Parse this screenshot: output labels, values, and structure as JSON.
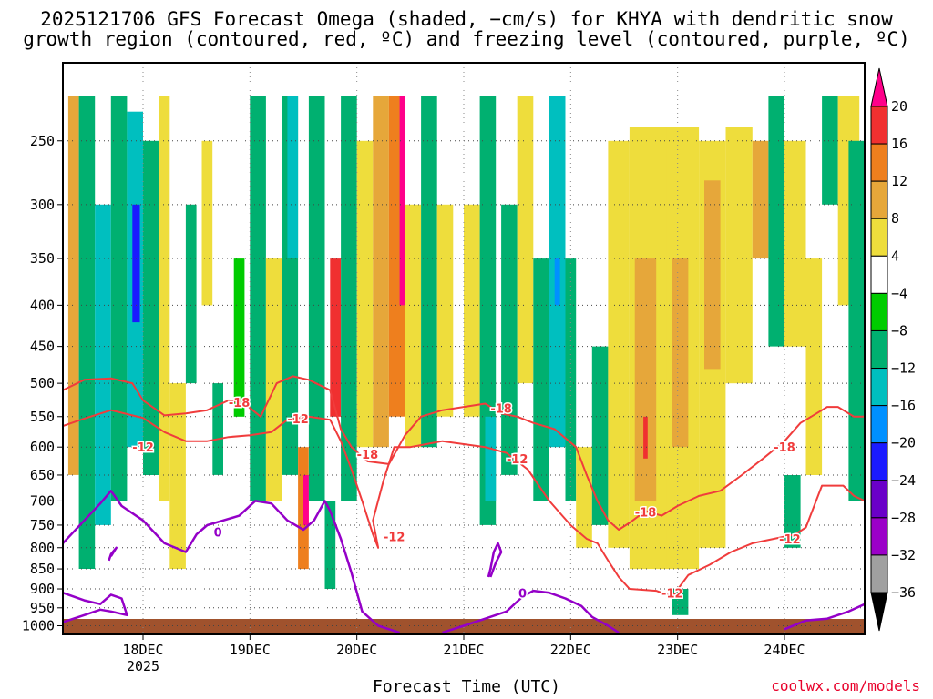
{
  "title_line1": "2025121706 GFS Forecast Omega (shaded, −cm/s) for KHYA with dendritic snow",
  "title_line2": "growth region (contoured, red, ºC) and freezing level (contoured, purple, ºC)",
  "credit": "coolwx.com/models",
  "chart_data": {
    "type": "heatmap",
    "title": "2025121706 GFS Forecast Omega (shaded, −cm/s) for KHYA with dendritic snow growth region (contoured, red, ºC) and freezing level (contoured, purple, ºC)",
    "xlabel": "Forecast Time (UTC)",
    "ylabel": "",
    "x_ticks": [
      {
        "day": 18,
        "label": "18DEC",
        "sublabel": "2025"
      },
      {
        "day": 19,
        "label": "19DEC"
      },
      {
        "day": 20,
        "label": "20DEC"
      },
      {
        "day": 21,
        "label": "21DEC"
      },
      {
        "day": 22,
        "label": "22DEC"
      },
      {
        "day": 23,
        "label": "23DEC"
      },
      {
        "day": 24,
        "label": "24DEC"
      }
    ],
    "x_range": [
      17.25,
      24.75
    ],
    "y_ticks": [
      250,
      300,
      350,
      400,
      450,
      500,
      550,
      600,
      650,
      700,
      750,
      800,
      850,
      900,
      950,
      1000
    ],
    "y_range": [
      1025,
      200
    ],
    "colorbar": {
      "labels": [
        "20",
        "16",
        "12",
        "8",
        "4",
        "−4",
        "−8",
        "−12",
        "−16",
        "−20",
        "−24",
        "−28",
        "−32",
        "−36"
      ],
      "colors": [
        "#ff008a",
        "#f03030",
        "#ee7f1e",
        "#e6a73a",
        "#eedd3c",
        "#ffffff",
        "#00cc00",
        "#00b070",
        "#00bfbf",
        "#0090ff",
        "#1a1aff",
        "#6a00c8",
        "#9b00c8",
        "#a0a0a0",
        "#000000"
      ]
    },
    "omega_cells": [
      {
        "t0": 17.3,
        "t1": 17.4,
        "p0": 220,
        "p1": 650,
        "v": 8
      },
      {
        "t0": 17.4,
        "t1": 17.55,
        "p0": 220,
        "p1": 850,
        "v": -8
      },
      {
        "t0": 17.55,
        "t1": 17.7,
        "p0": 300,
        "p1": 750,
        "v": -12
      },
      {
        "t0": 17.7,
        "t1": 17.85,
        "p0": 220,
        "p1": 700,
        "v": -8
      },
      {
        "t0": 17.85,
        "t1": 18.0,
        "p0": 230,
        "p1": 600,
        "v": -12
      },
      {
        "t0": 17.9,
        "t1": 17.97,
        "p0": 300,
        "p1": 420,
        "v": -20
      },
      {
        "t0": 18.0,
        "t1": 18.15,
        "p0": 250,
        "p1": 650,
        "v": -8
      },
      {
        "t0": 18.15,
        "t1": 18.25,
        "p0": 220,
        "p1": 700,
        "v": 4
      },
      {
        "t0": 18.25,
        "t1": 18.4,
        "p0": 500,
        "p1": 850,
        "v": 5
      },
      {
        "t0": 18.4,
        "t1": 18.5,
        "p0": 300,
        "p1": 500,
        "v": -8
      },
      {
        "t0": 18.55,
        "t1": 18.65,
        "p0": 250,
        "p1": 400,
        "v": 5
      },
      {
        "t0": 18.65,
        "t1": 18.75,
        "p0": 500,
        "p1": 650,
        "v": -8
      },
      {
        "t0": 18.85,
        "t1": 18.95,
        "p0": 350,
        "p1": 550,
        "v": -4.5
      },
      {
        "t0": 19.0,
        "t1": 19.15,
        "p0": 220,
        "p1": 700,
        "v": -8
      },
      {
        "t0": 19.15,
        "t1": 19.3,
        "p0": 350,
        "p1": 700,
        "v": 5
      },
      {
        "t0": 19.3,
        "t1": 19.45,
        "p0": 220,
        "p1": 650,
        "v": -8
      },
      {
        "t0": 19.35,
        "t1": 19.45,
        "p0": 220,
        "p1": 350,
        "v": -12
      },
      {
        "t0": 19.45,
        "t1": 19.55,
        "p0": 600,
        "p1": 850,
        "v": 12
      },
      {
        "t0": 19.5,
        "t1": 19.55,
        "p0": 650,
        "p1": 750,
        "v": 20
      },
      {
        "t0": 19.55,
        "t1": 19.7,
        "p0": 220,
        "p1": 700,
        "v": -8
      },
      {
        "t0": 19.7,
        "t1": 19.8,
        "p0": 700,
        "p1": 900,
        "v": -8
      },
      {
        "t0": 19.75,
        "t1": 19.85,
        "p0": 350,
        "p1": 550,
        "v": 16
      },
      {
        "t0": 19.85,
        "t1": 20.0,
        "p0": 220,
        "p1": 700,
        "v": -8
      },
      {
        "t0": 20.0,
        "t1": 20.15,
        "p0": 250,
        "p1": 600,
        "v": 5
      },
      {
        "t0": 20.15,
        "t1": 20.3,
        "p0": 220,
        "p1": 600,
        "v": 8
      },
      {
        "t0": 20.3,
        "t1": 20.45,
        "p0": 220,
        "p1": 550,
        "v": 12
      },
      {
        "t0": 20.4,
        "t1": 20.45,
        "p0": 220,
        "p1": 400,
        "v": 20
      },
      {
        "t0": 20.45,
        "t1": 20.6,
        "p0": 300,
        "p1": 600,
        "v": 5
      },
      {
        "t0": 20.6,
        "t1": 20.75,
        "p0": 220,
        "p1": 600,
        "v": -8
      },
      {
        "t0": 20.75,
        "t1": 20.9,
        "p0": 300,
        "p1": 550,
        "v": 5
      },
      {
        "t0": 21.0,
        "t1": 21.15,
        "p0": 300,
        "p1": 550,
        "v": 5
      },
      {
        "t0": 21.15,
        "t1": 21.3,
        "p0": 220,
        "p1": 750,
        "v": -8
      },
      {
        "t0": 21.2,
        "t1": 21.3,
        "p0": 550,
        "p1": 700,
        "v": -12
      },
      {
        "t0": 21.35,
        "t1": 21.5,
        "p0": 300,
        "p1": 650,
        "v": -8
      },
      {
        "t0": 21.5,
        "t1": 21.65,
        "p0": 220,
        "p1": 500,
        "v": 5
      },
      {
        "t0": 21.65,
        "t1": 21.8,
        "p0": 350,
        "p1": 700,
        "v": -8
      },
      {
        "t0": 21.8,
        "t1": 21.95,
        "p0": 220,
        "p1": 600,
        "v": -12
      },
      {
        "t0": 21.85,
        "t1": 21.9,
        "p0": 350,
        "p1": 400,
        "v": -16
      },
      {
        "t0": 21.95,
        "t1": 22.05,
        "p0": 350,
        "p1": 700,
        "v": -8
      },
      {
        "t0": 22.05,
        "t1": 22.2,
        "p0": 600,
        "p1": 800,
        "v": 5
      },
      {
        "t0": 22.2,
        "t1": 22.35,
        "p0": 450,
        "p1": 750,
        "v": -8
      },
      {
        "t0": 22.35,
        "t1": 22.55,
        "p0": 250,
        "p1": 800,
        "v": 5
      },
      {
        "t0": 22.55,
        "t1": 22.9,
        "p0": 240,
        "p1": 850,
        "v": 6
      },
      {
        "t0": 22.6,
        "t1": 22.8,
        "p0": 350,
        "p1": 700,
        "v": 10
      },
      {
        "t0": 22.68,
        "t1": 22.72,
        "p0": 550,
        "p1": 620,
        "v": 16
      },
      {
        "t0": 22.9,
        "t1": 23.2,
        "p0": 240,
        "p1": 850,
        "v": 6
      },
      {
        "t0": 22.95,
        "t1": 23.1,
        "p0": 350,
        "p1": 600,
        "v": 10
      },
      {
        "t0": 22.95,
        "t1": 23.1,
        "p0": 900,
        "p1": 970,
        "v": -8
      },
      {
        "t0": 23.2,
        "t1": 23.45,
        "p0": 250,
        "p1": 800,
        "v": 6
      },
      {
        "t0": 23.25,
        "t1": 23.4,
        "p0": 280,
        "p1": 480,
        "v": 10
      },
      {
        "t0": 23.45,
        "t1": 23.7,
        "p0": 240,
        "p1": 500,
        "v": 5
      },
      {
        "t0": 23.7,
        "t1": 23.85,
        "p0": 250,
        "p1": 350,
        "v": 10
      },
      {
        "t0": 23.85,
        "t1": 24.0,
        "p0": 220,
        "p1": 450,
        "v": -8
      },
      {
        "t0": 24.0,
        "t1": 24.2,
        "p0": 250,
        "p1": 450,
        "v": 5
      },
      {
        "t0": 24.2,
        "t1": 24.35,
        "p0": 350,
        "p1": 650,
        "v": 5
      },
      {
        "t0": 24.0,
        "t1": 24.15,
        "p0": 650,
        "p1": 800,
        "v": -8
      },
      {
        "t0": 24.35,
        "t1": 24.5,
        "p0": 220,
        "p1": 300,
        "v": -8
      },
      {
        "t0": 24.5,
        "t1": 24.7,
        "p0": 220,
        "p1": 400,
        "v": 5
      },
      {
        "t0": 24.6,
        "t1": 24.75,
        "p0": 250,
        "p1": 700,
        "v": -8
      }
    ],
    "dgz_contours": [
      {
        "label": "-12",
        "points": [
          [
            17.25,
            565
          ],
          [
            17.45,
            553
          ],
          [
            17.7,
            540
          ],
          [
            18.0,
            552
          ],
          [
            18.2,
            575
          ],
          [
            18.4,
            590
          ],
          [
            18.6,
            590
          ],
          [
            18.8,
            583
          ],
          [
            19.0,
            580
          ],
          [
            19.2,
            575
          ],
          [
            19.35,
            555
          ],
          [
            19.55,
            550
          ],
          [
            19.75,
            555
          ],
          [
            19.85,
            590
          ],
          [
            19.95,
            640
          ],
          [
            20.05,
            700
          ],
          [
            20.15,
            770
          ],
          [
            20.2,
            800
          ],
          [
            20.15,
            740
          ],
          [
            20.25,
            660
          ],
          [
            20.35,
            600
          ],
          [
            20.5,
            600
          ],
          [
            20.65,
            595
          ],
          [
            20.8,
            590
          ],
          [
            21.0,
            595
          ],
          [
            21.2,
            600
          ],
          [
            21.4,
            610
          ],
          [
            21.6,
            640
          ],
          [
            21.8,
            700
          ],
          [
            22.0,
            750
          ],
          [
            22.15,
            780
          ],
          [
            22.25,
            790
          ],
          [
            22.35,
            830
          ],
          [
            22.45,
            870
          ],
          [
            22.55,
            900
          ],
          [
            22.8,
            905
          ],
          [
            22.95,
            920
          ],
          [
            23.1,
            865
          ],
          [
            23.3,
            840
          ],
          [
            23.5,
            810
          ],
          [
            23.7,
            790
          ],
          [
            23.9,
            780
          ],
          [
            24.1,
            770
          ],
          [
            24.2,
            755
          ],
          [
            24.35,
            670
          ],
          [
            24.55,
            670
          ],
          [
            24.65,
            690
          ],
          [
            24.75,
            700
          ]
        ],
        "labels": [
          [
            18.0,
            600
          ],
          [
            19.45,
            553
          ],
          [
            20.35,
            775
          ],
          [
            21.5,
            620
          ],
          [
            22.95,
            910
          ],
          [
            24.05,
            780
          ]
        ]
      },
      {
        "label": "-18",
        "points": [
          [
            17.25,
            510
          ],
          [
            17.45,
            495
          ],
          [
            17.7,
            493
          ],
          [
            17.9,
            500
          ],
          [
            18.0,
            525
          ],
          [
            18.2,
            548
          ],
          [
            18.4,
            545
          ],
          [
            18.6,
            540
          ],
          [
            18.8,
            525
          ],
          [
            18.95,
            530
          ],
          [
            19.1,
            550
          ],
          [
            19.25,
            500
          ],
          [
            19.4,
            490
          ],
          [
            19.55,
            495
          ],
          [
            19.75,
            510
          ],
          [
            19.85,
            570
          ],
          [
            19.95,
            600
          ],
          [
            20.1,
            625
          ],
          [
            20.3,
            630
          ],
          [
            20.45,
            580
          ],
          [
            20.6,
            550
          ],
          [
            20.8,
            540
          ],
          [
            21.0,
            535
          ],
          [
            21.2,
            530
          ],
          [
            21.35,
            545
          ],
          [
            21.5,
            550
          ],
          [
            21.65,
            560
          ],
          [
            21.85,
            570
          ],
          [
            22.05,
            600
          ],
          [
            22.15,
            650
          ],
          [
            22.25,
            700
          ],
          [
            22.35,
            740
          ],
          [
            22.45,
            760
          ],
          [
            22.55,
            745
          ],
          [
            22.7,
            720
          ],
          [
            22.85,
            730
          ],
          [
            23.0,
            710
          ],
          [
            23.2,
            690
          ],
          [
            23.4,
            680
          ],
          [
            23.6,
            650
          ],
          [
            23.8,
            620
          ],
          [
            24.0,
            590
          ],
          [
            24.15,
            560
          ],
          [
            24.25,
            550
          ],
          [
            24.4,
            535
          ],
          [
            24.5,
            535
          ],
          [
            24.65,
            550
          ],
          [
            24.75,
            550
          ]
        ],
        "labels": [
          [
            18.9,
            528
          ],
          [
            20.1,
            612
          ],
          [
            21.35,
            537
          ],
          [
            22.7,
            722
          ],
          [
            24.0,
            600
          ]
        ]
      }
    ],
    "freezing_contours": [
      {
        "label": "0",
        "points": [
          [
            17.25,
            790
          ],
          [
            17.45,
            740
          ],
          [
            17.6,
            705
          ],
          [
            17.7,
            680
          ],
          [
            17.8,
            710
          ],
          [
            18.0,
            740
          ],
          [
            18.2,
            790
          ],
          [
            18.4,
            810
          ],
          [
            18.5,
            770
          ],
          [
            18.6,
            750
          ],
          [
            18.75,
            740
          ],
          [
            18.9,
            730
          ],
          [
            19.05,
            700
          ],
          [
            19.2,
            705
          ],
          [
            19.35,
            740
          ],
          [
            19.5,
            760
          ],
          [
            19.6,
            740
          ],
          [
            19.7,
            700
          ],
          [
            19.75,
            720
          ],
          [
            19.85,
            780
          ],
          [
            19.95,
            860
          ],
          [
            20.05,
            960
          ],
          [
            20.2,
            1000
          ],
          [
            20.4,
            1020
          ]
        ],
        "labels": [
          [
            18.7,
            765
          ]
        ]
      },
      {
        "label": "0",
        "points": [
          [
            17.25,
            910
          ],
          [
            17.45,
            930
          ],
          [
            17.6,
            940
          ],
          [
            17.7,
            915
          ],
          [
            17.8,
            925
          ],
          [
            17.85,
            970
          ],
          [
            17.7,
            960
          ],
          [
            17.6,
            955
          ],
          [
            17.45,
            970
          ],
          [
            17.35,
            980
          ],
          [
            17.25,
            990
          ]
        ],
        "labels": []
      },
      {
        "label": "0",
        "points": [
          [
            20.8,
            1020
          ],
          [
            21.0,
            1000
          ],
          [
            21.2,
            980
          ],
          [
            21.4,
            960
          ],
          [
            21.55,
            920
          ],
          [
            21.65,
            905
          ],
          [
            21.8,
            910
          ],
          [
            21.95,
            925
          ],
          [
            22.1,
            945
          ],
          [
            22.2,
            975
          ],
          [
            22.35,
            1000
          ],
          [
            22.45,
            1020
          ]
        ],
        "labels": [
          [
            21.55,
            910
          ]
        ]
      },
      {
        "label": "0",
        "points": [
          [
            24.0,
            1010
          ],
          [
            24.2,
            985
          ],
          [
            24.4,
            980
          ],
          [
            24.6,
            960
          ],
          [
            24.75,
            940
          ]
        ],
        "labels": []
      },
      {
        "label": "0",
        "points": [
          [
            21.25,
            870
          ],
          [
            21.3,
            835
          ],
          [
            21.35,
            810
          ],
          [
            21.32,
            790
          ],
          [
            21.28,
            810
          ],
          [
            21.25,
            850
          ],
          [
            21.23,
            870
          ]
        ],
        "labels": []
      },
      {
        "label": "0",
        "points": [
          [
            17.7,
            820
          ],
          [
            17.75,
            800
          ],
          [
            17.7,
            815
          ],
          [
            17.68,
            830
          ]
        ],
        "labels": []
      }
    ]
  }
}
